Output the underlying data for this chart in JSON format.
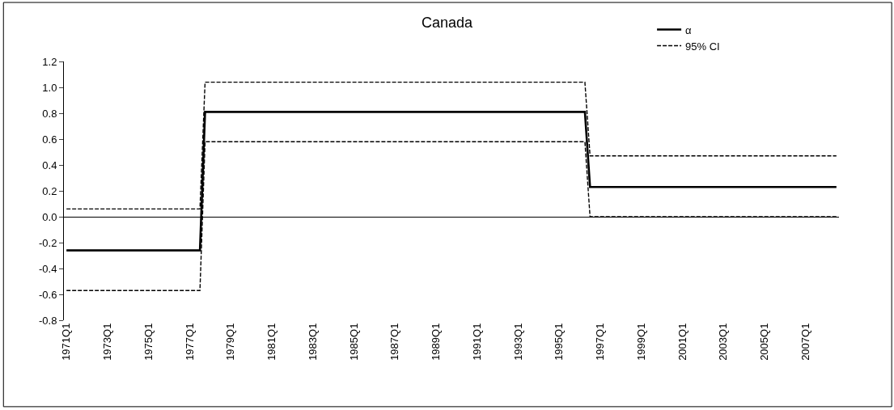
{
  "chart_data": {
    "type": "line",
    "title": "Canada",
    "categories": [
      "1971Q1",
      null,
      null,
      null,
      null,
      null,
      null,
      null,
      "1973Q1",
      null,
      null,
      null,
      null,
      null,
      null,
      null,
      "1975Q1",
      null,
      null,
      null,
      null,
      null,
      null,
      null,
      "1977Q1",
      null,
      null,
      null,
      null,
      null,
      null,
      null,
      "1979Q1",
      null,
      null,
      null,
      null,
      null,
      null,
      null,
      "1981Q1",
      null,
      null,
      null,
      null,
      null,
      null,
      null,
      "1983Q1",
      null,
      null,
      null,
      null,
      null,
      null,
      null,
      "1985Q1",
      null,
      null,
      null,
      null,
      null,
      null,
      null,
      "1987Q1",
      null,
      null,
      null,
      null,
      null,
      null,
      null,
      "1989Q1",
      null,
      null,
      null,
      null,
      null,
      null,
      null,
      "1991Q1",
      null,
      null,
      null,
      null,
      null,
      null,
      null,
      "1993Q1",
      null,
      null,
      null,
      null,
      null,
      null,
      null,
      "1995Q1",
      null,
      null,
      null,
      null,
      null,
      null,
      null,
      "1997Q1",
      null,
      null,
      null,
      null,
      null,
      null,
      null,
      "1999Q1",
      null,
      null,
      null,
      null,
      null,
      null,
      null,
      "2001Q1",
      null,
      null,
      null,
      null,
      null,
      null,
      null,
      "2003Q1",
      null,
      null,
      null,
      null,
      null,
      null,
      null,
      "2005Q1",
      null,
      null,
      null,
      null,
      null,
      null,
      null,
      "2007Q1",
      null,
      null,
      null,
      null,
      null,
      null
    ],
    "series": [
      {
        "name": "α",
        "color": "#000000",
        "line_style": "solid",
        "values": [
          -0.26,
          -0.26,
          -0.26,
          -0.26,
          -0.26,
          -0.26,
          -0.26,
          -0.26,
          -0.26,
          -0.26,
          -0.26,
          -0.26,
          -0.26,
          -0.26,
          -0.26,
          -0.26,
          -0.26,
          -0.26,
          -0.26,
          -0.26,
          -0.26,
          -0.26,
          -0.26,
          -0.26,
          -0.26,
          -0.26,
          -0.26,
          0.81,
          0.81,
          0.81,
          0.81,
          0.81,
          0.81,
          0.81,
          0.81,
          0.81,
          0.81,
          0.81,
          0.81,
          0.81,
          0.81,
          0.81,
          0.81,
          0.81,
          0.81,
          0.81,
          0.81,
          0.81,
          0.81,
          0.81,
          0.81,
          0.81,
          0.81,
          0.81,
          0.81,
          0.81,
          0.81,
          0.81,
          0.81,
          0.81,
          0.81,
          0.81,
          0.81,
          0.81,
          0.81,
          0.81,
          0.81,
          0.81,
          0.81,
          0.81,
          0.81,
          0.81,
          0.81,
          0.81,
          0.81,
          0.81,
          0.81,
          0.81,
          0.81,
          0.81,
          0.81,
          0.81,
          0.81,
          0.81,
          0.81,
          0.81,
          0.81,
          0.81,
          0.81,
          0.81,
          0.81,
          0.81,
          0.81,
          0.81,
          0.81,
          0.81,
          0.81,
          0.81,
          0.81,
          0.81,
          0.81,
          0.81,
          0.23,
          0.23,
          0.23,
          0.23,
          0.23,
          0.23,
          0.23,
          0.23,
          0.23,
          0.23,
          0.23,
          0.23,
          0.23,
          0.23,
          0.23,
          0.23,
          0.23,
          0.23,
          0.23,
          0.23,
          0.23,
          0.23,
          0.23,
          0.23,
          0.23,
          0.23,
          0.23,
          0.23,
          0.23,
          0.23,
          0.23,
          0.23,
          0.23,
          0.23,
          0.23,
          0.23,
          0.23,
          0.23,
          0.23,
          0.23,
          0.23,
          0.23,
          0.23,
          0.23,
          0.23,
          0.23,
          0.23,
          0.23,
          0.23
        ]
      },
      {
        "name": "95% CI",
        "color": "#000000",
        "line_style": "dashed",
        "values": [
          0.06,
          0.06,
          0.06,
          0.06,
          0.06,
          0.06,
          0.06,
          0.06,
          0.06,
          0.06,
          0.06,
          0.06,
          0.06,
          0.06,
          0.06,
          0.06,
          0.06,
          0.06,
          0.06,
          0.06,
          0.06,
          0.06,
          0.06,
          0.06,
          0.06,
          0.06,
          0.06,
          1.04,
          1.04,
          1.04,
          1.04,
          1.04,
          1.04,
          1.04,
          1.04,
          1.04,
          1.04,
          1.04,
          1.04,
          1.04,
          1.04,
          1.04,
          1.04,
          1.04,
          1.04,
          1.04,
          1.04,
          1.04,
          1.04,
          1.04,
          1.04,
          1.04,
          1.04,
          1.04,
          1.04,
          1.04,
          1.04,
          1.04,
          1.04,
          1.04,
          1.04,
          1.04,
          1.04,
          1.04,
          1.04,
          1.04,
          1.04,
          1.04,
          1.04,
          1.04,
          1.04,
          1.04,
          1.04,
          1.04,
          1.04,
          1.04,
          1.04,
          1.04,
          1.04,
          1.04,
          1.04,
          1.04,
          1.04,
          1.04,
          1.04,
          1.04,
          1.04,
          1.04,
          1.04,
          1.04,
          1.04,
          1.04,
          1.04,
          1.04,
          1.04,
          1.04,
          1.04,
          1.04,
          1.04,
          1.04,
          1.04,
          1.04,
          0.47,
          0.47,
          0.47,
          0.47,
          0.47,
          0.47,
          0.47,
          0.47,
          0.47,
          0.47,
          0.47,
          0.47,
          0.47,
          0.47,
          0.47,
          0.47,
          0.47,
          0.47,
          0.47,
          0.47,
          0.47,
          0.47,
          0.47,
          0.47,
          0.47,
          0.47,
          0.47,
          0.47,
          0.47,
          0.47,
          0.47,
          0.47,
          0.47,
          0.47,
          0.47,
          0.47,
          0.47,
          0.47,
          0.47,
          0.47,
          0.47,
          0.47,
          0.47,
          0.47,
          0.47,
          0.47,
          0.47,
          0.47,
          0.47
        ]
      },
      {
        "color": "#000000",
        "line_style": "dashed",
        "values": [
          -0.57,
          -0.57,
          -0.57,
          -0.57,
          -0.57,
          -0.57,
          -0.57,
          -0.57,
          -0.57,
          -0.57,
          -0.57,
          -0.57,
          -0.57,
          -0.57,
          -0.57,
          -0.57,
          -0.57,
          -0.57,
          -0.57,
          -0.57,
          -0.57,
          -0.57,
          -0.57,
          -0.57,
          -0.57,
          -0.57,
          -0.57,
          0.58,
          0.58,
          0.58,
          0.58,
          0.58,
          0.58,
          0.58,
          0.58,
          0.58,
          0.58,
          0.58,
          0.58,
          0.58,
          0.58,
          0.58,
          0.58,
          0.58,
          0.58,
          0.58,
          0.58,
          0.58,
          0.58,
          0.58,
          0.58,
          0.58,
          0.58,
          0.58,
          0.58,
          0.58,
          0.58,
          0.58,
          0.58,
          0.58,
          0.58,
          0.58,
          0.58,
          0.58,
          0.58,
          0.58,
          0.58,
          0.58,
          0.58,
          0.58,
          0.58,
          0.58,
          0.58,
          0.58,
          0.58,
          0.58,
          0.58,
          0.58,
          0.58,
          0.58,
          0.58,
          0.58,
          0.58,
          0.58,
          0.58,
          0.58,
          0.58,
          0.58,
          0.58,
          0.58,
          0.58,
          0.58,
          0.58,
          0.58,
          0.58,
          0.58,
          0.58,
          0.58,
          0.58,
          0.58,
          0.58,
          0.58,
          0.0,
          0.0,
          0.0,
          0.0,
          0.0,
          0.0,
          0.0,
          0.0,
          0.0,
          0.0,
          0.0,
          0.0,
          0.0,
          0.0,
          0.0,
          0.0,
          0.0,
          0.0,
          0.0,
          0.0,
          0.0,
          0.0,
          0.0,
          0.0,
          0.0,
          0.0,
          0.0,
          0.0,
          0.0,
          0.0,
          0.0,
          0.0,
          0.0,
          0.0,
          0.0,
          0.0,
          0.0,
          0.0,
          0.0,
          0.0,
          0.0,
          0.0,
          0.0,
          0.0,
          0.0,
          0.0,
          0.0,
          0.0,
          0.0
        ]
      }
    ],
    "ylim": [
      -0.8,
      1.2
    ],
    "yticks": [
      -0.8,
      -0.6,
      -0.4,
      -0.2,
      {
        "value": 0,
        "label": "0.0"
      },
      0.2,
      0.4,
      0.6,
      0.8,
      {
        "value": 1,
        "label": "1.0"
      },
      1.2
    ],
    "legend": "top right",
    "marker": "none"
  }
}
